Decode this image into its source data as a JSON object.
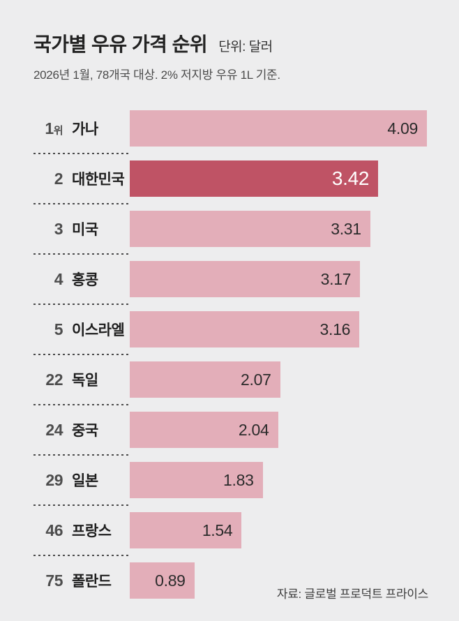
{
  "header": {
    "title": "국가별 우유 가격 순위",
    "unit_label": "단위: 달러",
    "subtitle": "2026년 1월, 78개국 대상. 2% 저지방 우유 1L 기준."
  },
  "footer": {
    "source": "자료: 글로벌 프로덕트 프라이스"
  },
  "colors": {
    "background": "#ededee",
    "bar": "#e3aeb9",
    "bar_highlight": "#bf5365",
    "value_text": "#2b2b2b",
    "value_text_highlight": "#ffffff",
    "separator": "#4a4a4a"
  },
  "chart_data": {
    "type": "bar",
    "orientation": "horizontal",
    "title": "국가별 우유 가격 순위",
    "unit": "달러",
    "note": "2026년 1월, 78개국 대상. 2% 저지방 우유 1L 기준.",
    "source": "자료: 글로벌 프로덕트 프라이스",
    "categories": [
      "가나",
      "대한민국",
      "미국",
      "홍콩",
      "이스라엘",
      "독일",
      "중국",
      "일본",
      "프랑스",
      "폴란드"
    ],
    "values": [
      4.09,
      3.42,
      3.31,
      3.17,
      3.16,
      2.07,
      2.04,
      1.83,
      1.54,
      0.89
    ],
    "xlim": [
      0,
      4.09
    ],
    "highlight_index": 1,
    "grid": false,
    "legend": false,
    "rows": [
      {
        "rank": "1",
        "rank_suffix": "위",
        "name": "가나",
        "value": 4.09,
        "display": "4.09",
        "highlight": false
      },
      {
        "rank": "2",
        "rank_suffix": "",
        "name": "대한민국",
        "value": 3.42,
        "display": "3.42",
        "highlight": true
      },
      {
        "rank": "3",
        "rank_suffix": "",
        "name": "미국",
        "value": 3.31,
        "display": "3.31",
        "highlight": false
      },
      {
        "rank": "4",
        "rank_suffix": "",
        "name": "홍콩",
        "value": 3.17,
        "display": "3.17",
        "highlight": false
      },
      {
        "rank": "5",
        "rank_suffix": "",
        "name": "이스라엘",
        "value": 3.16,
        "display": "3.16",
        "highlight": false
      },
      {
        "rank": "22",
        "rank_suffix": "",
        "name": "독일",
        "value": 2.07,
        "display": "2.07",
        "highlight": false
      },
      {
        "rank": "24",
        "rank_suffix": "",
        "name": "중국",
        "value": 2.04,
        "display": "2.04",
        "highlight": false
      },
      {
        "rank": "29",
        "rank_suffix": "",
        "name": "일본",
        "value": 1.83,
        "display": "1.83",
        "highlight": false
      },
      {
        "rank": "46",
        "rank_suffix": "",
        "name": "프랑스",
        "value": 1.54,
        "display": "1.54",
        "highlight": false
      },
      {
        "rank": "75",
        "rank_suffix": "",
        "name": "폴란드",
        "value": 0.89,
        "display": "0.89",
        "highlight": false
      }
    ]
  }
}
